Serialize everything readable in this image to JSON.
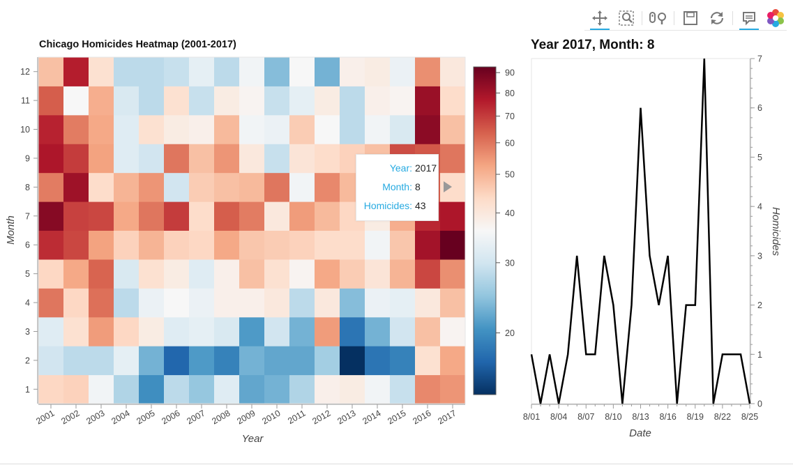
{
  "toolbar": {
    "tools": [
      {
        "name": "pan-tool",
        "icon": "pan-icon",
        "active": true
      },
      {
        "name": "box-zoom-tool",
        "icon": "box-zoom-icon",
        "active": false
      },
      {
        "name": "wheel-zoom-tool",
        "icon": "wheel-zoom-icon",
        "active": false
      },
      {
        "name": "save-tool",
        "icon": "save-icon",
        "active": false
      },
      {
        "name": "reset-tool",
        "icon": "reset-icon",
        "active": false
      },
      {
        "name": "hover-tool",
        "icon": "hover-icon",
        "active": true
      },
      {
        "name": "bokeh-logo",
        "icon": "bokeh-logo-icon",
        "active": false
      }
    ]
  },
  "tooltip": {
    "year_label": "Year:",
    "year_value": "2017",
    "month_label": "Month:",
    "month_value": "8",
    "homicides_label": "Homicides:",
    "homicides_value": "43"
  },
  "chart_data": [
    {
      "type": "heatmap",
      "title": "Chicago Homicides Heatmap (2001-2017)",
      "xlabel": "Year",
      "ylabel": "Month",
      "x_categories": [
        "2001",
        "2002",
        "2003",
        "2004",
        "2005",
        "2006",
        "2007",
        "2008",
        "2009",
        "2010",
        "2011",
        "2012",
        "2013",
        "2014",
        "2015",
        "2016",
        "2017"
      ],
      "y_categories": [
        "1",
        "2",
        "3",
        "4",
        "5",
        "6",
        "7",
        "8",
        "9",
        "10",
        "11",
        "12"
      ],
      "values_by_year": [
        [
          44,
          30,
          32,
          60,
          44,
          73,
          86,
          59,
          78,
          75,
          64,
          48
        ],
        [
          45,
          28,
          42,
          44,
          52,
          68,
          69,
          81,
          70,
          59,
          36,
          76
        ],
        [
          35,
          28,
          54,
          61,
          63,
          53,
          68,
          43,
          53,
          52,
          51,
          42
        ],
        [
          27,
          33,
          44,
          28,
          31,
          45,
          52,
          50,
          32,
          32,
          31,
          28
        ],
        [
          20,
          23,
          39,
          34,
          42,
          50,
          60,
          55,
          30,
          42,
          28,
          28
        ],
        [
          28,
          17,
          32,
          36,
          39,
          45,
          70,
          30,
          60,
          39,
          42,
          29
        ],
        [
          25,
          21,
          33,
          34,
          32,
          44,
          43,
          46,
          48,
          38,
          29,
          33
        ],
        [
          32,
          19,
          31,
          38,
          38,
          52,
          64,
          48,
          55,
          49,
          39,
          28
        ],
        [
          22,
          23,
          21,
          38,
          48,
          47,
          59,
          49,
          40,
          35,
          37,
          35
        ],
        [
          23,
          22,
          30,
          40,
          42,
          46,
          40,
          60,
          29,
          34,
          29,
          24
        ],
        [
          27,
          22,
          23,
          28,
          37,
          45,
          54,
          35,
          41,
          46,
          33,
          36
        ],
        [
          38,
          26,
          54,
          40,
          52,
          43,
          49,
          57,
          43,
          36,
          39,
          23
        ],
        [
          39,
          14,
          18,
          24,
          46,
          43,
          44,
          49,
          45,
          28,
          28,
          38
        ],
        [
          35,
          18,
          23,
          34,
          41,
          35,
          39,
          43,
          48,
          35,
          38,
          39
        ],
        [
          29,
          19,
          30,
          33,
          50,
          47,
          51,
          53,
          67,
          31,
          37,
          34
        ],
        [
          57,
          42,
          48,
          40,
          68,
          80,
          74,
          64,
          65,
          85,
          82,
          56
        ],
        [
          55,
          52,
          37,
          48,
          56,
          93,
          78,
          43,
          60,
          48,
          43,
          40
        ]
      ],
      "color_scale": {
        "type": "log",
        "min": 14,
        "max": 93,
        "ticks": [
          20,
          30,
          40,
          50,
          60,
          70,
          80,
          90
        ],
        "palette": [
          "#053061",
          "#2166ac",
          "#4393c3",
          "#92c5de",
          "#d1e5f0",
          "#f7f7f7",
          "#fddbc7",
          "#f4a582",
          "#d6604d",
          "#b2182b",
          "#67001f"
        ]
      }
    },
    {
      "type": "line",
      "title": "Year 2017, Month: 8",
      "xlabel": "Date",
      "ylabel": "Homicides",
      "x_tick_labels": [
        "8/01",
        "8/04",
        "8/07",
        "8/10",
        "8/13",
        "8/16",
        "8/19",
        "8/22",
        "8/25"
      ],
      "x": [
        "8/01",
        "8/02",
        "8/03",
        "8/04",
        "8/05",
        "8/06",
        "8/07",
        "8/08",
        "8/09",
        "8/10",
        "8/11",
        "8/12",
        "8/13",
        "8/14",
        "8/15",
        "8/16",
        "8/17",
        "8/18",
        "8/19",
        "8/20",
        "8/21",
        "8/22",
        "8/23",
        "8/24",
        "8/25"
      ],
      "y": [
        1,
        0,
        1,
        0,
        1,
        3,
        1,
        1,
        3,
        2,
        0,
        2,
        6,
        3,
        2,
        3,
        0,
        2,
        2,
        7,
        0,
        1,
        1,
        1,
        0
      ],
      "ylim": [
        0,
        7
      ],
      "y_ticks": [
        0,
        1,
        2,
        3,
        4,
        5,
        6,
        7
      ],
      "line_color": "#000000"
    }
  ]
}
